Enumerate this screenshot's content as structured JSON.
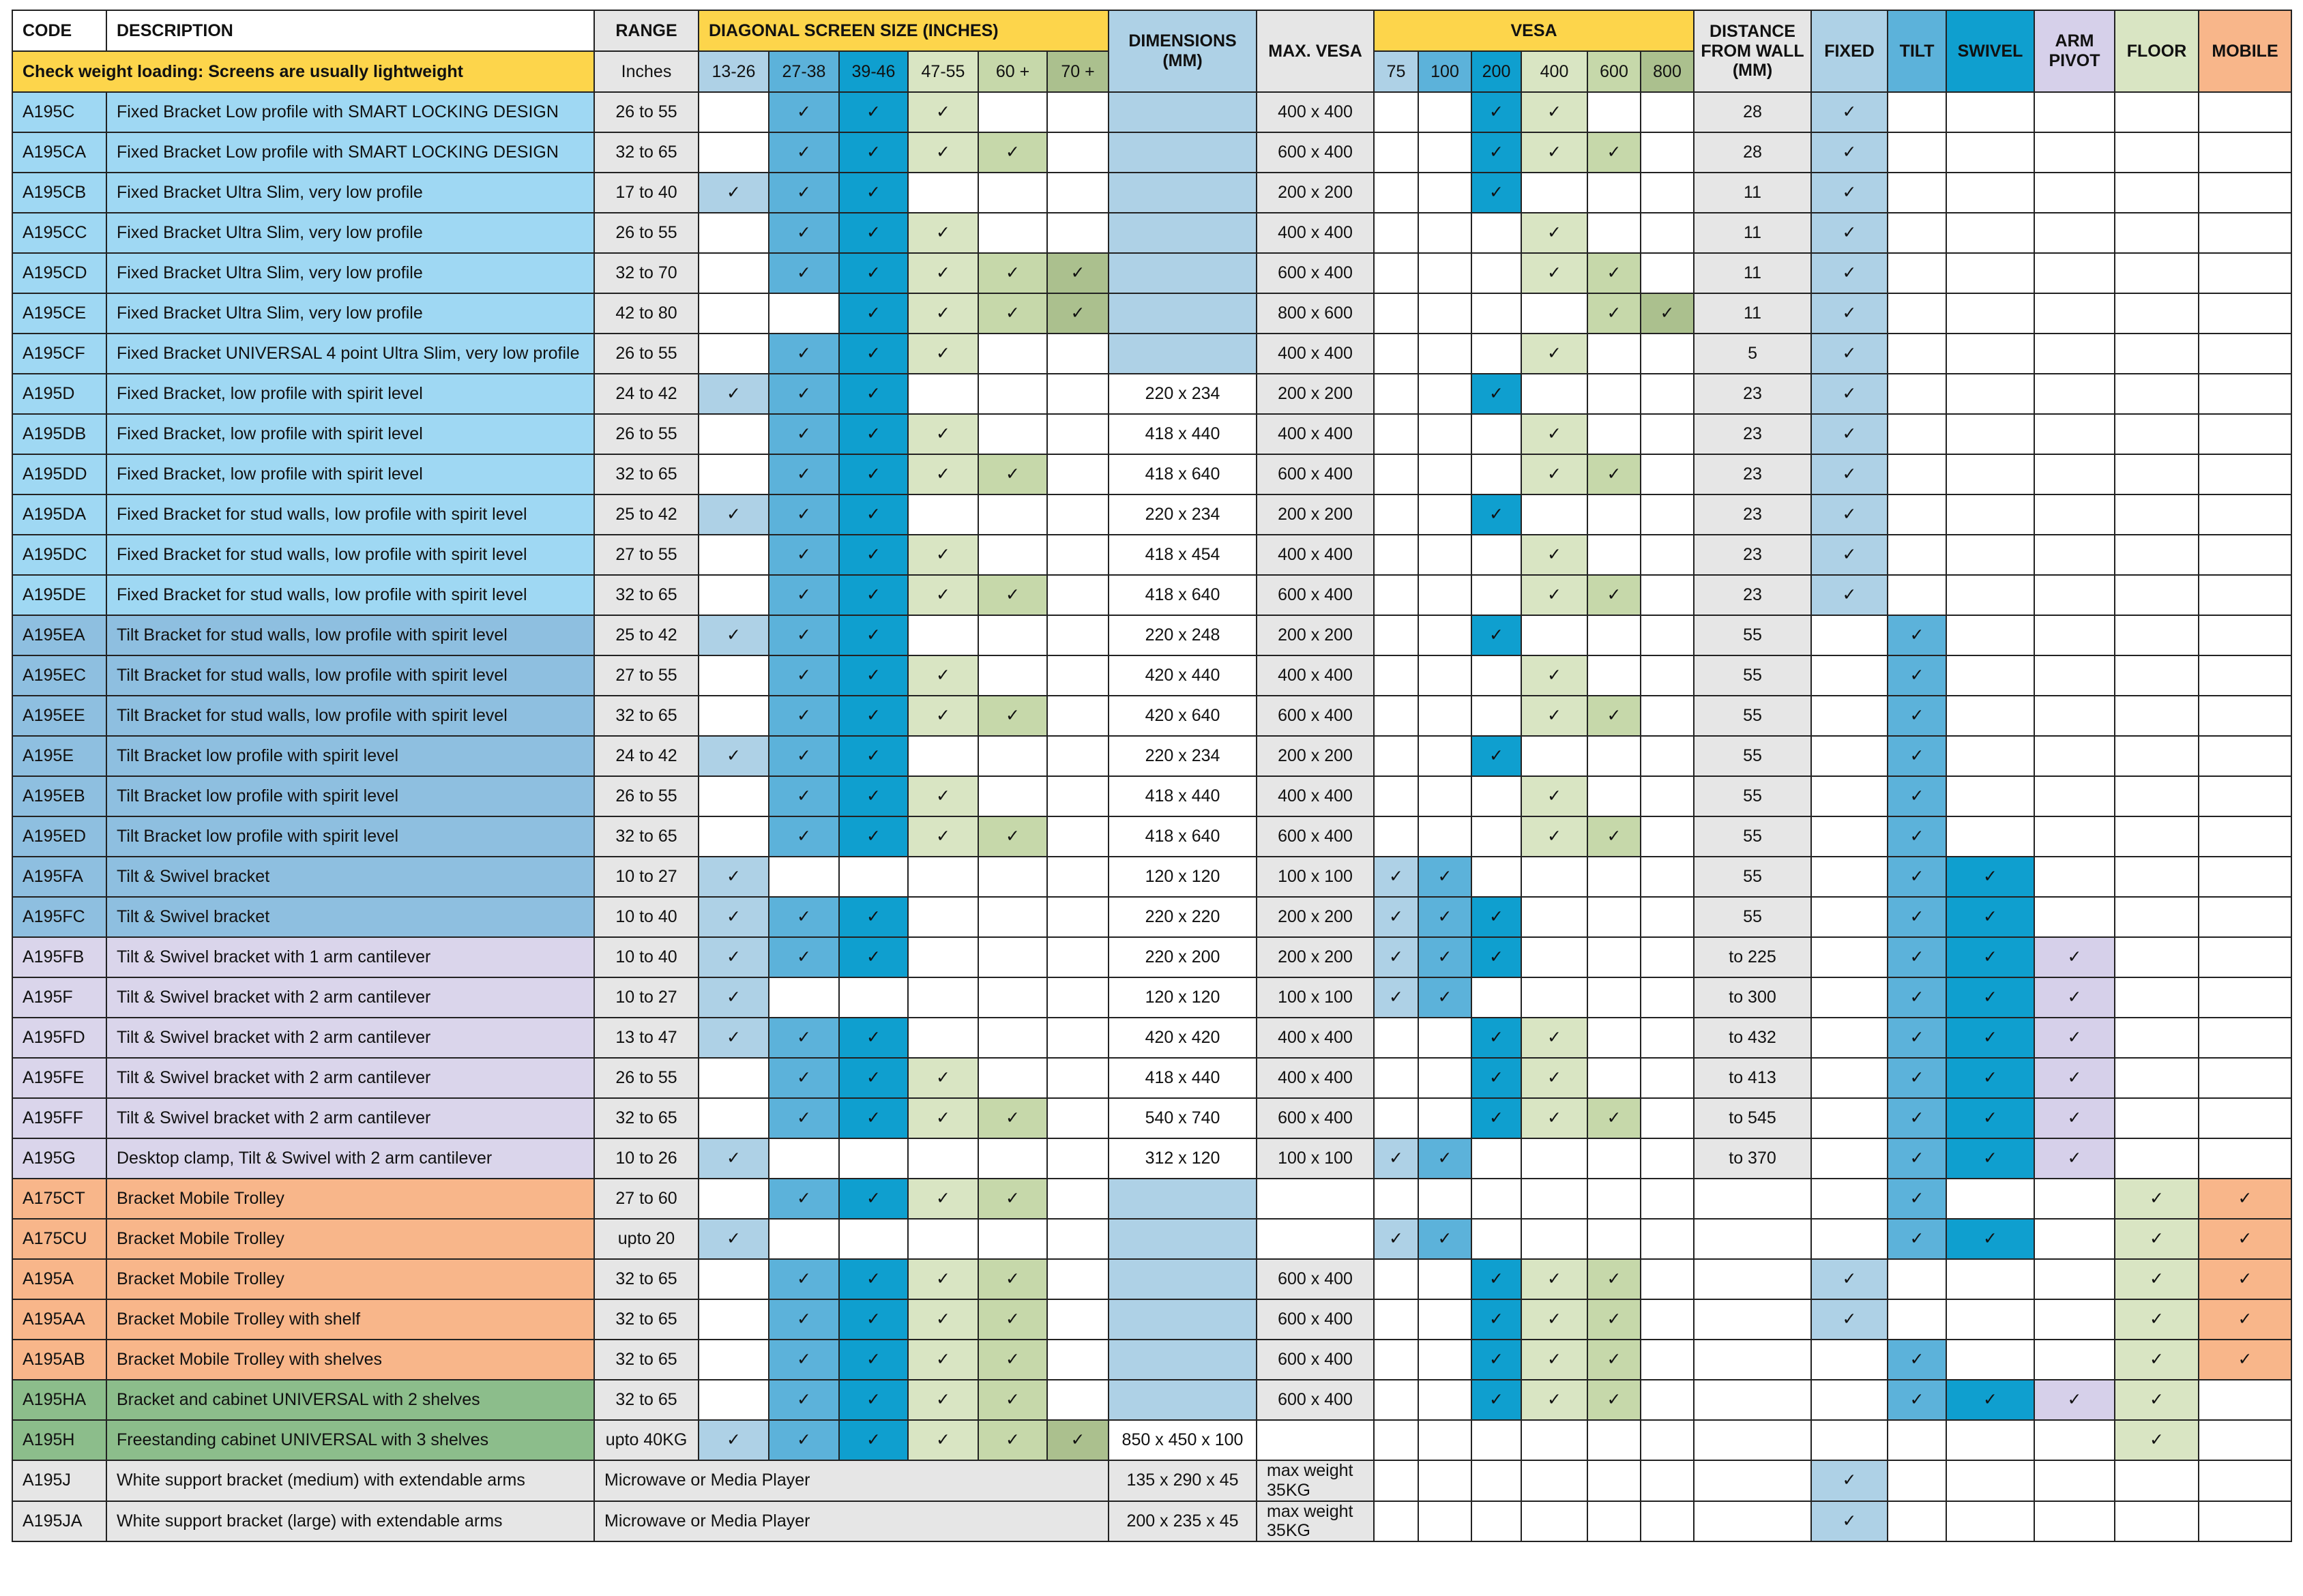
{
  "header": {
    "code": "CODE",
    "description": "DESCRIPTION",
    "range": "RANGE",
    "diagonal": "DIAGONAL SCREEN SIZE (INCHES)",
    "dimensions": "DIMENSIONS (MM)",
    "max_vesa": "MAX. VESA",
    "vesa": "VESA",
    "distance": "DISTANCE FROM WALL (MM)",
    "mounts": [
      "FIXED",
      "TILT",
      "SWIVEL",
      "ARM PIVOT",
      "FLOOR",
      "MOBILE"
    ],
    "note": "Check weight loading: Screens are usually lightweight",
    "range_unit": "Inches",
    "sizes": [
      "13-26",
      "27-38",
      "39-46",
      "47-55",
      "60 +",
      "70 +"
    ],
    "vesa_sizes": [
      "75",
      "100",
      "200",
      "400",
      "600",
      "800"
    ]
  },
  "rows": [
    {
      "code": "A195C",
      "description": "Fixed Bracket Low profile with SMART LOCKING DESIGN",
      "range": "26 to 55",
      "sizes": [
        null,
        "✓",
        "✓",
        "✓",
        null,
        null
      ],
      "dimensions": null,
      "max_vesa": "400 x 400",
      "vesa": [
        null,
        null,
        "✓",
        "✓",
        null,
        null
      ],
      "distance": "28",
      "mounts": [
        "✓",
        null,
        null,
        null,
        null,
        null
      ]
    },
    {
      "code": "A195CA",
      "description": "Fixed Bracket Low profile with SMART LOCKING DESIGN",
      "range": "32 to 65",
      "sizes": [
        null,
        "✓",
        "✓",
        "✓",
        "✓",
        null
      ],
      "dimensions": null,
      "max_vesa": "600 x 400",
      "vesa": [
        null,
        null,
        "✓",
        "✓",
        "✓",
        null
      ],
      "distance": "28",
      "mounts": [
        "✓",
        null,
        null,
        null,
        null,
        null
      ]
    },
    {
      "code": "A195CB",
      "description": "Fixed Bracket Ultra Slim, very low profile",
      "range": "17 to 40",
      "sizes": [
        "✓",
        "✓",
        "✓",
        null,
        null,
        null
      ],
      "dimensions": null,
      "max_vesa": "200 x 200",
      "vesa": [
        null,
        null,
        "✓",
        null,
        null,
        null
      ],
      "distance": "11",
      "mounts": [
        "✓",
        null,
        null,
        null,
        null,
        null
      ]
    },
    {
      "code": "A195CC",
      "description": "Fixed Bracket Ultra Slim, very low profile",
      "range": "26 to 55",
      "sizes": [
        null,
        "✓",
        "✓",
        "✓",
        null,
        null
      ],
      "dimensions": null,
      "max_vesa": "400 x 400",
      "vesa": [
        null,
        null,
        null,
        "✓",
        null,
        null
      ],
      "distance": "11",
      "mounts": [
        "✓",
        null,
        null,
        null,
        null,
        null
      ]
    },
    {
      "code": "A195CD",
      "description": "Fixed Bracket Ultra Slim, very low profile",
      "range": "32 to 70",
      "sizes": [
        null,
        "✓",
        "✓",
        "✓",
        "✓",
        "✓"
      ],
      "dimensions": null,
      "max_vesa": "600 x 400",
      "vesa": [
        null,
        null,
        null,
        "✓",
        "✓",
        null
      ],
      "distance": "11",
      "mounts": [
        "✓",
        null,
        null,
        null,
        null,
        null
      ]
    },
    {
      "code": "A195CE",
      "description": "Fixed Bracket Ultra Slim, very low profile",
      "range": "42 to 80",
      "sizes": [
        null,
        null,
        "✓",
        "✓",
        "✓",
        "✓"
      ],
      "dimensions": null,
      "max_vesa": "800 x 600",
      "vesa": [
        null,
        null,
        null,
        null,
        "✓",
        "✓"
      ],
      "distance": "11",
      "mounts": [
        "✓",
        null,
        null,
        null,
        null,
        null
      ]
    },
    {
      "code": "A195CF",
      "description": "Fixed Bracket UNIVERSAL 4 point Ultra Slim, very low profile",
      "range": "26 to 55",
      "sizes": [
        null,
        "✓",
        "✓",
        "✓",
        null,
        null
      ],
      "dimensions": null,
      "max_vesa": "400 x 400",
      "vesa": [
        null,
        null,
        null,
        "✓",
        null,
        null
      ],
      "distance": "5",
      "mounts": [
        "✓",
        null,
        null,
        null,
        null,
        null
      ]
    },
    {
      "code": "A195D",
      "description": "Fixed Bracket, low profile with spirit level",
      "range": "24 to 42",
      "sizes": [
        "✓",
        "✓",
        "✓",
        null,
        null,
        null
      ],
      "dimensions": "220 x 234",
      "max_vesa": "200 x 200",
      "vesa": [
        null,
        null,
        "✓",
        null,
        null,
        null
      ],
      "distance": "23",
      "mounts": [
        "✓",
        null,
        null,
        null,
        null,
        null
      ]
    },
    {
      "code": "A195DB",
      "description": "Fixed Bracket, low profile with spirit level",
      "range": "26 to 55",
      "sizes": [
        null,
        "✓",
        "✓",
        "✓",
        null,
        null
      ],
      "dimensions": "418 x 440",
      "max_vesa": "400 x 400",
      "vesa": [
        null,
        null,
        null,
        "✓",
        null,
        null
      ],
      "distance": "23",
      "mounts": [
        "✓",
        null,
        null,
        null,
        null,
        null
      ]
    },
    {
      "code": "A195DD",
      "description": "Fixed Bracket, low profile with spirit level",
      "range": "32 to 65",
      "sizes": [
        null,
        "✓",
        "✓",
        "✓",
        "✓",
        null
      ],
      "dimensions": "418 x 640",
      "max_vesa": "600 x 400",
      "vesa": [
        null,
        null,
        null,
        "✓",
        "✓",
        null
      ],
      "distance": "23",
      "mounts": [
        "✓",
        null,
        null,
        null,
        null,
        null
      ]
    },
    {
      "code": "A195DA",
      "description": "Fixed Bracket for stud walls, low profile with spirit level",
      "range": "25 to 42",
      "sizes": [
        "✓",
        "✓",
        "✓",
        null,
        null,
        null
      ],
      "dimensions": "220 x 234",
      "max_vesa": "200 x 200",
      "vesa": [
        null,
        null,
        "✓",
        null,
        null,
        null
      ],
      "distance": "23",
      "mounts": [
        "✓",
        null,
        null,
        null,
        null,
        null
      ]
    },
    {
      "code": "A195DC",
      "description": "Fixed Bracket for stud walls, low profile with spirit level",
      "range": "27 to 55",
      "sizes": [
        null,
        "✓",
        "✓",
        "✓",
        null,
        null
      ],
      "dimensions": "418 x 454",
      "max_vesa": "400 x 400",
      "vesa": [
        null,
        null,
        null,
        "✓",
        null,
        null
      ],
      "distance": "23",
      "mounts": [
        "✓",
        null,
        null,
        null,
        null,
        null
      ]
    },
    {
      "code": "A195DE",
      "description": "Fixed Bracket for stud walls, low profile with spirit level",
      "range": "32 to 65",
      "sizes": [
        null,
        "✓",
        "✓",
        "✓",
        "✓",
        null
      ],
      "dimensions": "418 x 640",
      "max_vesa": "600 x 400",
      "vesa": [
        null,
        null,
        null,
        "✓",
        "✓",
        null
      ],
      "distance": "23",
      "mounts": [
        "✓",
        null,
        null,
        null,
        null,
        null
      ]
    },
    {
      "code": "A195EA",
      "description": "Tilt Bracket for stud walls, low profile with spirit level",
      "range": "25 to 42",
      "sizes": [
        "✓",
        "✓",
        "✓",
        null,
        null,
        null
      ],
      "dimensions": "220 x 248",
      "max_vesa": "200 x 200",
      "vesa": [
        null,
        null,
        "✓",
        null,
        null,
        null
      ],
      "distance": "55",
      "mounts": [
        null,
        "✓",
        null,
        null,
        null,
        null
      ]
    },
    {
      "code": "A195EC",
      "description": "Tilt Bracket for stud walls, low profile with spirit level",
      "range": "27 to 55",
      "sizes": [
        null,
        "✓",
        "✓",
        "✓",
        null,
        null
      ],
      "dimensions": "420 x 440",
      "max_vesa": "400 x 400",
      "vesa": [
        null,
        null,
        null,
        "✓",
        null,
        null
      ],
      "distance": "55",
      "mounts": [
        null,
        "✓",
        null,
        null,
        null,
        null
      ]
    },
    {
      "code": "A195EE",
      "description": "Tilt Bracket for stud walls, low profile with spirit level",
      "range": "32 to 65",
      "sizes": [
        null,
        "✓",
        "✓",
        "✓",
        "✓",
        null
      ],
      "dimensions": "420 x 640",
      "max_vesa": "600 x 400",
      "vesa": [
        null,
        null,
        null,
        "✓",
        "✓",
        null
      ],
      "distance": "55",
      "mounts": [
        null,
        "✓",
        null,
        null,
        null,
        null
      ]
    },
    {
      "code": "A195E",
      "description": "Tilt Bracket low profile with spirit level",
      "range": "24 to 42",
      "sizes": [
        "✓",
        "✓",
        "✓",
        null,
        null,
        null
      ],
      "dimensions": "220 x 234",
      "max_vesa": "200 x 200",
      "vesa": [
        null,
        null,
        "✓",
        null,
        null,
        null
      ],
      "distance": "55",
      "mounts": [
        null,
        "✓",
        null,
        null,
        null,
        null
      ]
    },
    {
      "code": "A195EB",
      "description": "Tilt Bracket low profile with spirit level",
      "range": "26 to 55",
      "sizes": [
        null,
        "✓",
        "✓",
        "✓",
        null,
        null
      ],
      "dimensions": "418 x 440",
      "max_vesa": "400 x 400",
      "vesa": [
        null,
        null,
        null,
        "✓",
        null,
        null
      ],
      "distance": "55",
      "mounts": [
        null,
        "✓",
        null,
        null,
        null,
        null
      ]
    },
    {
      "code": "A195ED",
      "description": "Tilt Bracket low profile with spirit level",
      "range": "32 to 65",
      "sizes": [
        null,
        "✓",
        "✓",
        "✓",
        "✓",
        null
      ],
      "dimensions": "418 x 640",
      "max_vesa": "600 x 400",
      "vesa": [
        null,
        null,
        null,
        "✓",
        "✓",
        null
      ],
      "distance": "55",
      "mounts": [
        null,
        "✓",
        null,
        null,
        null,
        null
      ]
    },
    {
      "code": "A195FA",
      "description": "Tilt & Swivel bracket",
      "range": "10 to 27",
      "sizes": [
        "✓",
        null,
        null,
        null,
        null,
        null
      ],
      "dimensions": "120 x 120",
      "max_vesa": "100 x 100",
      "vesa": [
        "✓",
        "✓",
        null,
        null,
        null,
        null
      ],
      "distance": "55",
      "mounts": [
        null,
        "✓",
        "✓",
        null,
        null,
        null
      ]
    },
    {
      "code": "A195FC",
      "description": "Tilt & Swivel bracket",
      "range": "10 to 40",
      "sizes": [
        "✓",
        "✓",
        "✓",
        null,
        null,
        null
      ],
      "dimensions": "220 x 220",
      "max_vesa": "200 x 200",
      "vesa": [
        "✓",
        "✓",
        "✓",
        null,
        null,
        null
      ],
      "distance": "55",
      "mounts": [
        null,
        "✓",
        "✓",
        null,
        null,
        null
      ]
    },
    {
      "code": "A195FB",
      "description": "Tilt & Swivel bracket with 1 arm cantilever",
      "range": "10 to 40",
      "sizes": [
        "✓",
        "✓",
        "✓",
        null,
        null,
        null
      ],
      "dimensions": "220 x 200",
      "max_vesa": "200 x 200",
      "vesa": [
        "✓",
        "✓",
        "✓",
        null,
        null,
        null
      ],
      "distance": "to 225",
      "mounts": [
        null,
        "✓",
        "✓",
        "✓",
        null,
        null
      ]
    },
    {
      "code": "A195F",
      "description": "Tilt & Swivel bracket with 2 arm cantilever",
      "range": "10 to 27",
      "sizes": [
        "✓",
        null,
        null,
        null,
        null,
        null
      ],
      "dimensions": "120 x 120",
      "max_vesa": "100 x 100",
      "vesa": [
        "✓",
        "✓",
        null,
        null,
        null,
        null
      ],
      "distance": "to 300",
      "mounts": [
        null,
        "✓",
        "✓",
        "✓",
        null,
        null
      ]
    },
    {
      "code": "A195FD",
      "description": "Tilt & Swivel bracket with 2 arm cantilever",
      "range": "13 to 47",
      "sizes": [
        "✓",
        "✓",
        "✓",
        null,
        null,
        null
      ],
      "dimensions": "420 x 420",
      "max_vesa": "400 x 400",
      "vesa": [
        null,
        null,
        "✓",
        "✓",
        null,
        null
      ],
      "distance": "to 432",
      "mounts": [
        null,
        "✓",
        "✓",
        "✓",
        null,
        null
      ]
    },
    {
      "code": "A195FE",
      "description": "Tilt & Swivel bracket with 2 arm cantilever",
      "range": "26 to 55",
      "sizes": [
        null,
        "✓",
        "✓",
        "✓",
        null,
        null
      ],
      "dimensions": "418 x 440",
      "max_vesa": "400 x 400",
      "vesa": [
        null,
        null,
        "✓",
        "✓",
        null,
        null
      ],
      "distance": "to 413",
      "mounts": [
        null,
        "✓",
        "✓",
        "✓",
        null,
        null
      ]
    },
    {
      "code": "A195FF",
      "description": "Tilt & Swivel bracket with 2 arm cantilever",
      "range": "32 to 65",
      "sizes": [
        null,
        "✓",
        "✓",
        "✓",
        "✓",
        null
      ],
      "dimensions": "540 x 740",
      "max_vesa": "600 x 400",
      "vesa": [
        null,
        null,
        "✓",
        "✓",
        "✓",
        null
      ],
      "distance": "to 545",
      "mounts": [
        null,
        "✓",
        "✓",
        "✓",
        null,
        null
      ]
    },
    {
      "code": "A195G",
      "description": "Desktop clamp, Tilt & Swivel with 2 arm cantilever",
      "range": "10 to 26",
      "sizes": [
        "✓",
        null,
        null,
        null,
        null,
        null
      ],
      "dimensions": "312 x 120",
      "max_vesa": "100 x 100",
      "vesa": [
        "✓",
        "✓",
        null,
        null,
        null,
        null
      ],
      "distance": "to 370",
      "mounts": [
        null,
        "✓",
        "✓",
        "✓",
        null,
        null
      ]
    },
    {
      "code": "A175CT",
      "description": "Bracket Mobile Trolley",
      "range": "27 to 60",
      "sizes": [
        null,
        "✓",
        "✓",
        "✓",
        "✓",
        null
      ],
      "dimensions": null,
      "max_vesa": null,
      "vesa": [
        null,
        null,
        null,
        null,
        null,
        null
      ],
      "distance": null,
      "mounts": [
        null,
        "✓",
        null,
        null,
        "✓",
        "✓"
      ]
    },
    {
      "code": "A175CU",
      "description": "Bracket Mobile Trolley",
      "range": "upto 20",
      "sizes": [
        "✓",
        null,
        null,
        null,
        null,
        null
      ],
      "dimensions": null,
      "max_vesa": null,
      "vesa": [
        "✓",
        "✓",
        null,
        null,
        null,
        null
      ],
      "distance": null,
      "mounts": [
        null,
        "✓",
        "✓",
        null,
        "✓",
        "✓"
      ]
    },
    {
      "code": "A195A",
      "description": "Bracket Mobile Trolley",
      "range": "32 to 65",
      "sizes": [
        null,
        "✓",
        "✓",
        "✓",
        "✓",
        null
      ],
      "dimensions": null,
      "max_vesa": "600 x 400",
      "vesa": [
        null,
        null,
        "✓",
        "✓",
        "✓",
        null
      ],
      "distance": null,
      "mounts": [
        "✓",
        null,
        null,
        null,
        "✓",
        "✓"
      ]
    },
    {
      "code": "A195AA",
      "description": "Bracket Mobile Trolley with shelf",
      "range": "32 to 65",
      "sizes": [
        null,
        "✓",
        "✓",
        "✓",
        "✓",
        null
      ],
      "dimensions": null,
      "max_vesa": "600 x 400",
      "vesa": [
        null,
        null,
        "✓",
        "✓",
        "✓",
        null
      ],
      "distance": null,
      "mounts": [
        "✓",
        null,
        null,
        null,
        "✓",
        "✓"
      ]
    },
    {
      "code": "A195AB",
      "description": "Bracket Mobile Trolley with shelves",
      "range": "32 to 65",
      "sizes": [
        null,
        "✓",
        "✓",
        "✓",
        "✓",
        null
      ],
      "dimensions": null,
      "max_vesa": "600 x 400",
      "vesa": [
        null,
        null,
        "✓",
        "✓",
        "✓",
        null
      ],
      "distance": null,
      "mounts": [
        null,
        "✓",
        null,
        null,
        "✓",
        "✓"
      ]
    },
    {
      "code": "A195HA",
      "description": "Bracket and cabinet UNIVERSAL with 2 shelves",
      "range": "32 to 65",
      "sizes": [
        null,
        "✓",
        "✓",
        "✓",
        "✓",
        null
      ],
      "dimensions": null,
      "max_vesa": "600 x 400",
      "vesa": [
        null,
        null,
        "✓",
        "✓",
        "✓",
        null
      ],
      "distance": null,
      "mounts": [
        null,
        "✓",
        "✓",
        "✓",
        "✓",
        null
      ]
    },
    {
      "code": "A195H",
      "description": "Freestanding cabinet UNIVERSAL with 3 shelves",
      "range": "upto 40KG",
      "sizes": [
        "✓",
        "✓",
        "✓",
        "✓",
        "✓",
        "✓"
      ],
      "dimensions": "850 x 450 x 100",
      "max_vesa": null,
      "vesa": [
        null,
        null,
        null,
        null,
        null,
        null
      ],
      "distance": null,
      "mounts": [
        null,
        null,
        null,
        null,
        "✓",
        null
      ]
    },
    {
      "code": "A195J",
      "description": "White support bracket (medium) with extendable arms",
      "range": "Microwave or Media Player",
      "dimensions": "135 x 290 x 45",
      "max_vesa": "max weight 35KG",
      "vesa": [
        null,
        null,
        null,
        null,
        null,
        null
      ],
      "distance": null,
      "mounts": [
        "✓",
        null,
        null,
        null,
        null,
        null
      ]
    },
    {
      "code": "A195JA",
      "description": "White support bracket (large) with extendable arms",
      "range": "Microwave or Media Player",
      "dimensions": "200 x 235 x 45",
      "max_vesa": "max weight 35KG",
      "vesa": [
        null,
        null,
        null,
        null,
        null,
        null
      ],
      "distance": null,
      "mounts": [
        "✓",
        null,
        null,
        null,
        null,
        null
      ]
    }
  ]
}
